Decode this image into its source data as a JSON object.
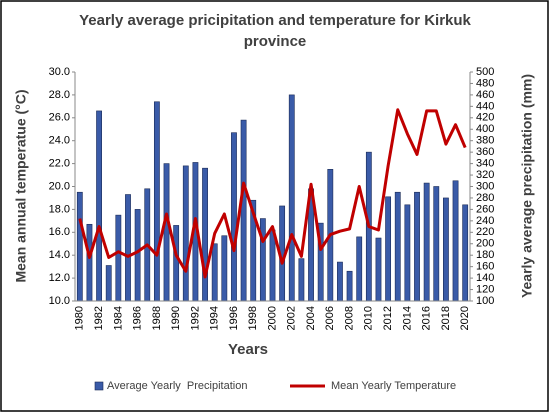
{
  "chart_data": {
    "type": "bar",
    "title": "Yearly average pricipitation and temperature for Kirkuk province",
    "xlabel": "Years",
    "ylabel": "Mean annual temperatue (°C)",
    "y2label": "Yearly average precipitation  (mm)",
    "categories": [
      "1980",
      null,
      "1982",
      null,
      "1984",
      null,
      "1986",
      null,
      "1988",
      null,
      "1990",
      null,
      "1992",
      null,
      "1994",
      null,
      "1996",
      null,
      "1998",
      null,
      "2000",
      null,
      "2002",
      null,
      "2004",
      null,
      "2006",
      null,
      "2008",
      null,
      "2010",
      null,
      "2012",
      null,
      "2014",
      null,
      "2016",
      null,
      "2018",
      null,
      "2020"
    ],
    "series": [
      {
        "name": "Average Yearly  Precipitation",
        "type": "bar",
        "axis": "y2",
        "color": "#3a5ba8",
        "values": [
          290,
          234,
          432,
          162,
          250,
          286,
          260,
          296,
          448,
          340,
          232,
          336,
          342,
          332,
          200,
          214,
          394,
          416,
          276,
          244,
          224,
          266,
          460,
          174,
          296,
          236,
          330,
          168,
          152,
          212,
          360,
          210,
          282,
          290,
          268,
          290,
          306,
          300,
          280,
          310,
          268
        ]
      },
      {
        "name": "Mean Yearly Temperature",
        "type": "line",
        "axis": "y",
        "color": "#c00000",
        "values": [
          17.2,
          13.8,
          16.5,
          13.8,
          14.3,
          13.9,
          14.3,
          14.9,
          14.0,
          17.6,
          14.0,
          12.6,
          17.2,
          12.1,
          15.9,
          17.6,
          14.4,
          20.3,
          17.7,
          15.2,
          16.5,
          13.3,
          15.8,
          13.9,
          20.2,
          14.5,
          15.8,
          16.1,
          16.3,
          20.0,
          16.5,
          16.2,
          21.8,
          26.7,
          24.6,
          22.8,
          26.6,
          26.6,
          23.7,
          25.4,
          23.4
        ]
      }
    ],
    "ylim": [
      10,
      30
    ],
    "yticks": [
      {
        "value": 10,
        "label": "10.0"
      },
      {
        "value": 12,
        "label": "12.0"
      },
      {
        "value": 14,
        "label": "14.0"
      },
      {
        "value": 16,
        "label": "16.0"
      },
      {
        "value": 18,
        "label": "18.0"
      },
      {
        "value": 20,
        "label": "20.0"
      },
      {
        "value": 22,
        "label": "22.0"
      },
      {
        "value": 24,
        "label": "24.0"
      },
      {
        "value": 26,
        "label": "26.0"
      },
      {
        "value": 28,
        "label": "28.0"
      },
      {
        "value": 30,
        "label": "30.0"
      }
    ],
    "y2lim": [
      100,
      500
    ],
    "y2ticks": [
      100,
      120,
      140,
      160,
      180,
      200,
      220,
      240,
      260,
      280,
      300,
      320,
      340,
      360,
      380,
      400,
      420,
      440,
      460,
      480,
      500
    ],
    "legend": "bottom"
  }
}
